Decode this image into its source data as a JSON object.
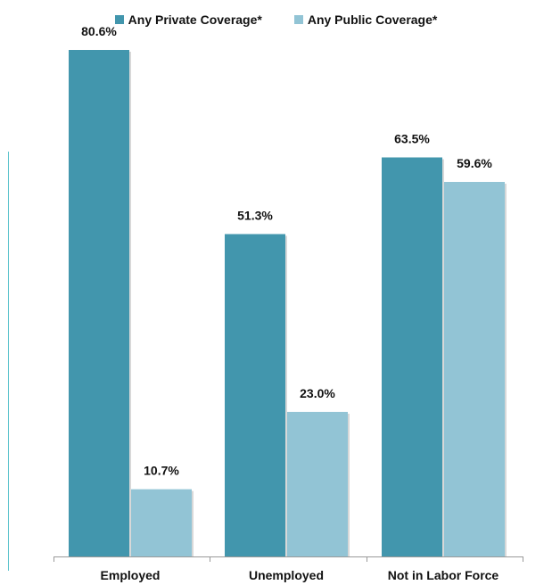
{
  "chart_data": {
    "type": "bar",
    "categories": [
      "Employed",
      "Unemployed",
      "Not in Labor Force"
    ],
    "series": [
      {
        "name": "Any Private Coverage*",
        "values": [
          80.6,
          51.3,
          63.5
        ],
        "labels": [
          "80.6%",
          "51.3%",
          "63.5%"
        ],
        "color": "#4296ad"
      },
      {
        "name": "Any Public Coverage*",
        "values": [
          10.7,
          23.0,
          59.6
        ],
        "labels": [
          "10.7%",
          "23.0%",
          "59.6%"
        ],
        "color": "#92c4d5"
      }
    ],
    "title": "",
    "xlabel": "",
    "ylabel": "",
    "ylim": [
      0,
      85
    ],
    "grid": false,
    "legend": "top-center"
  },
  "colors": {
    "private": "#4296ad",
    "public": "#92c4d5",
    "axis": "#999999",
    "accent_line": "#5cc3cc"
  }
}
